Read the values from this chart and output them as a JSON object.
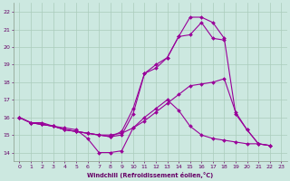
{
  "bg_color": "#cce8e0",
  "line_color": "#990099",
  "grid_color": "#aaccbb",
  "tick_color": "#660066",
  "xlabel": "Windchill (Refroidissement éolien,°C)",
  "xlim": [
    -0.5,
    23.5
  ],
  "ylim": [
    13.5,
    22.5
  ],
  "xticks": [
    0,
    1,
    2,
    3,
    4,
    5,
    6,
    7,
    8,
    9,
    10,
    11,
    12,
    13,
    14,
    15,
    16,
    17,
    18,
    19,
    20,
    21,
    22,
    23
  ],
  "yticks": [
    14,
    15,
    16,
    17,
    18,
    19,
    20,
    21,
    22
  ],
  "lines": [
    {
      "x": [
        0,
        1,
        2,
        3,
        4,
        5,
        6,
        7,
        8,
        9,
        10,
        11,
        12,
        13,
        14,
        15,
        16,
        17,
        18,
        19,
        20,
        21,
        22
      ],
      "y": [
        16,
        15.7,
        15.6,
        15.5,
        15.3,
        15.2,
        15.1,
        15.0,
        15.0,
        15.1,
        15.4,
        15.8,
        16.3,
        16.8,
        17.3,
        17.8,
        17.9,
        18.0,
        18.2,
        16.3,
        15.3,
        14.5,
        14.4
      ]
    },
    {
      "x": [
        0,
        1,
        2,
        3,
        4,
        5,
        6,
        7,
        8,
        9,
        10,
        11,
        12,
        13,
        14,
        15,
        16,
        17,
        18,
        19,
        20,
        21,
        22
      ],
      "y": [
        16,
        15.7,
        15.7,
        15.5,
        15.4,
        15.3,
        14.8,
        14.0,
        14.0,
        14.1,
        15.4,
        16.0,
        16.5,
        17.0,
        16.4,
        15.5,
        15.0,
        14.8,
        14.7,
        14.6,
        14.5,
        14.5,
        14.4
      ]
    },
    {
      "x": [
        0,
        1,
        2,
        3,
        4,
        5,
        6,
        7,
        8,
        9,
        10,
        11,
        12,
        13,
        14,
        15,
        16,
        17,
        18
      ],
      "y": [
        16,
        15.7,
        15.6,
        15.5,
        15.3,
        15.2,
        15.1,
        15.0,
        14.9,
        15.2,
        16.5,
        18.5,
        19.0,
        19.4,
        20.6,
        20.7,
        21.4,
        20.5,
        20.4
      ]
    },
    {
      "x": [
        0,
        1,
        2,
        3,
        4,
        5,
        6,
        7,
        8,
        9,
        10,
        11,
        12,
        13,
        14,
        15,
        16,
        17,
        18,
        19,
        20,
        21,
        22
      ],
      "y": [
        16,
        15.7,
        15.6,
        15.5,
        15.3,
        15.2,
        15.1,
        15.0,
        14.9,
        15.0,
        16.2,
        18.5,
        18.8,
        19.4,
        20.6,
        21.7,
        21.7,
        21.4,
        20.5,
        16.2,
        15.3,
        14.5,
        14.4
      ]
    }
  ]
}
